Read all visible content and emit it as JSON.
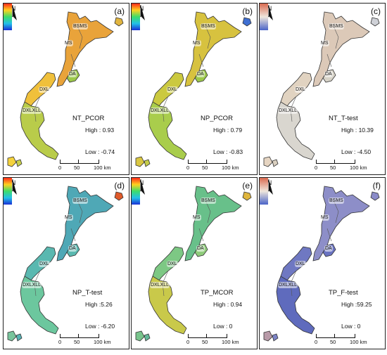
{
  "north_label": "N",
  "regions": {
    "bsms": "BSMS",
    "ms": "MS",
    "da": "DA",
    "dxl": "DXL",
    "dxlxll": "DXLXLL"
  },
  "scale": {
    "zero": "0",
    "fifty": "50",
    "hundred": "100 km"
  },
  "panels": [
    {
      "label": "(a)",
      "title": "NT_PCOR",
      "high": "High : 0.93",
      "low": "Low : -0.74",
      "palette": "rainbow",
      "colors": [
        "#e9a33a",
        "#f0c03b",
        "#b9cc4a",
        "#9cc84a",
        "#e1b540",
        "#f4d23c",
        "#c9d14a"
      ]
    },
    {
      "label": "(b)",
      "title": "NP_PCOR",
      "high": "High : 0.79",
      "low": "Low : -0.83",
      "palette": "rainbow",
      "colors": [
        "#d7c23f",
        "#cbc93f",
        "#a9cd4c",
        "#9cc84a",
        "#3f6fd2",
        "#d9c641",
        "#c5cd4a"
      ]
    },
    {
      "label": "(c)",
      "title": "NT_T-test",
      "high": "High : 10.39",
      "low": "Low : -4.50",
      "palette": "diverging",
      "colors": [
        "#dcc9b8",
        "#e1d3c1",
        "#d9d6cf",
        "#d7d3c8",
        "#cfd1d7",
        "#e6d5c2",
        "#d9cfbf"
      ]
    },
    {
      "label": "(d)",
      "title": "NP_T-test",
      "high": "High :5.26",
      "low": "Low : -6.20",
      "palette": "rainbow",
      "colors": [
        "#4fa8b6",
        "#5ab8b0",
        "#6cc79e",
        "#5ab9b0",
        "#e05a2a",
        "#78c49c",
        "#58b2b4"
      ]
    },
    {
      "label": "(e)",
      "title": "TP_MCOR",
      "high": "High : 0.94",
      "low": "Low : 0",
      "palette": "rainbow",
      "colors": [
        "#68c08a",
        "#7dc884",
        "#c9c94a",
        "#8fcc7b",
        "#dfb53c",
        "#78c48c",
        "#64b99a"
      ]
    },
    {
      "label": "(f)",
      "title": "TP_F-test",
      "high": "High :59.25",
      "low": "Low : 0",
      "palette": "diverging",
      "colors": [
        "#8d8ec8",
        "#6f78c2",
        "#5f6bbd",
        "#6a73c1",
        "#8a8bc8",
        "#b89aa8",
        "#7c84c6"
      ]
    }
  ]
}
